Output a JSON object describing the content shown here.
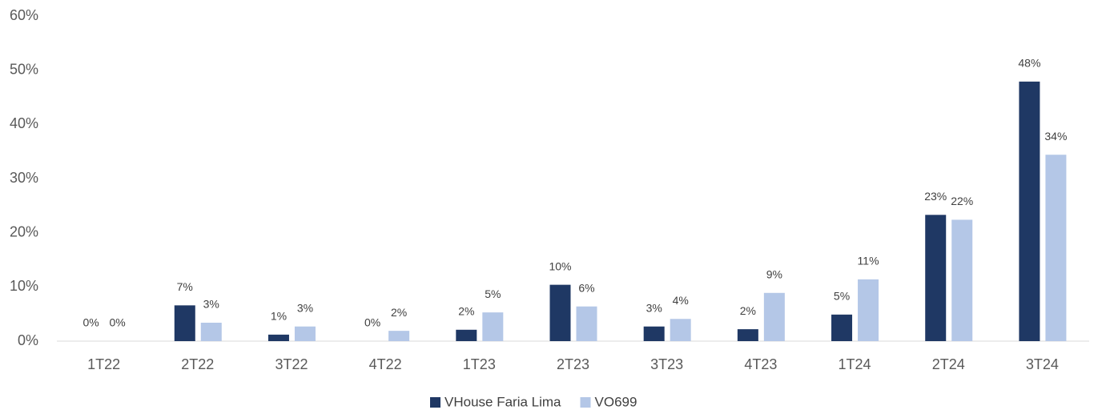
{
  "chart_data": {
    "type": "bar",
    "categories": [
      "1T22",
      "2T22",
      "3T22",
      "4T22",
      "1T23",
      "2T23",
      "3T23",
      "4T23",
      "1T24",
      "2T24",
      "3T24"
    ],
    "series": [
      {
        "name": "VHouse Faria Lima",
        "color": "#1f3864",
        "values": [
          0,
          6.6,
          1.2,
          0,
          2.1,
          10.4,
          2.7,
          2.2,
          4.9,
          23.3,
          47.9
        ],
        "value_labels": [
          "0%",
          "7%",
          "1%",
          "0%",
          "2%",
          "10%",
          "3%",
          "2%",
          "5%",
          "23%",
          "48%"
        ]
      },
      {
        "name": "VO699",
        "color": "#b4c7e7",
        "values": [
          0,
          3.4,
          2.7,
          1.9,
          5.3,
          6.4,
          4.1,
          8.9,
          11.4,
          22.4,
          34.4
        ],
        "value_labels": [
          "0%",
          "3%",
          "3%",
          "2%",
          "5%",
          "6%",
          "4%",
          "9%",
          "11%",
          "22%",
          "34%"
        ]
      }
    ],
    "ylim": [
      0,
      60
    ],
    "yticks": [
      {
        "value": 0,
        "label": "0%"
      },
      {
        "value": 10,
        "label": "10%"
      },
      {
        "value": 20,
        "label": "20%"
      },
      {
        "value": 30,
        "label": "30%"
      },
      {
        "value": 40,
        "label": "40%"
      },
      {
        "value": 50,
        "label": "50%"
      },
      {
        "value": 60,
        "label": "60%"
      }
    ],
    "grid": false,
    "legend": "bottom"
  }
}
